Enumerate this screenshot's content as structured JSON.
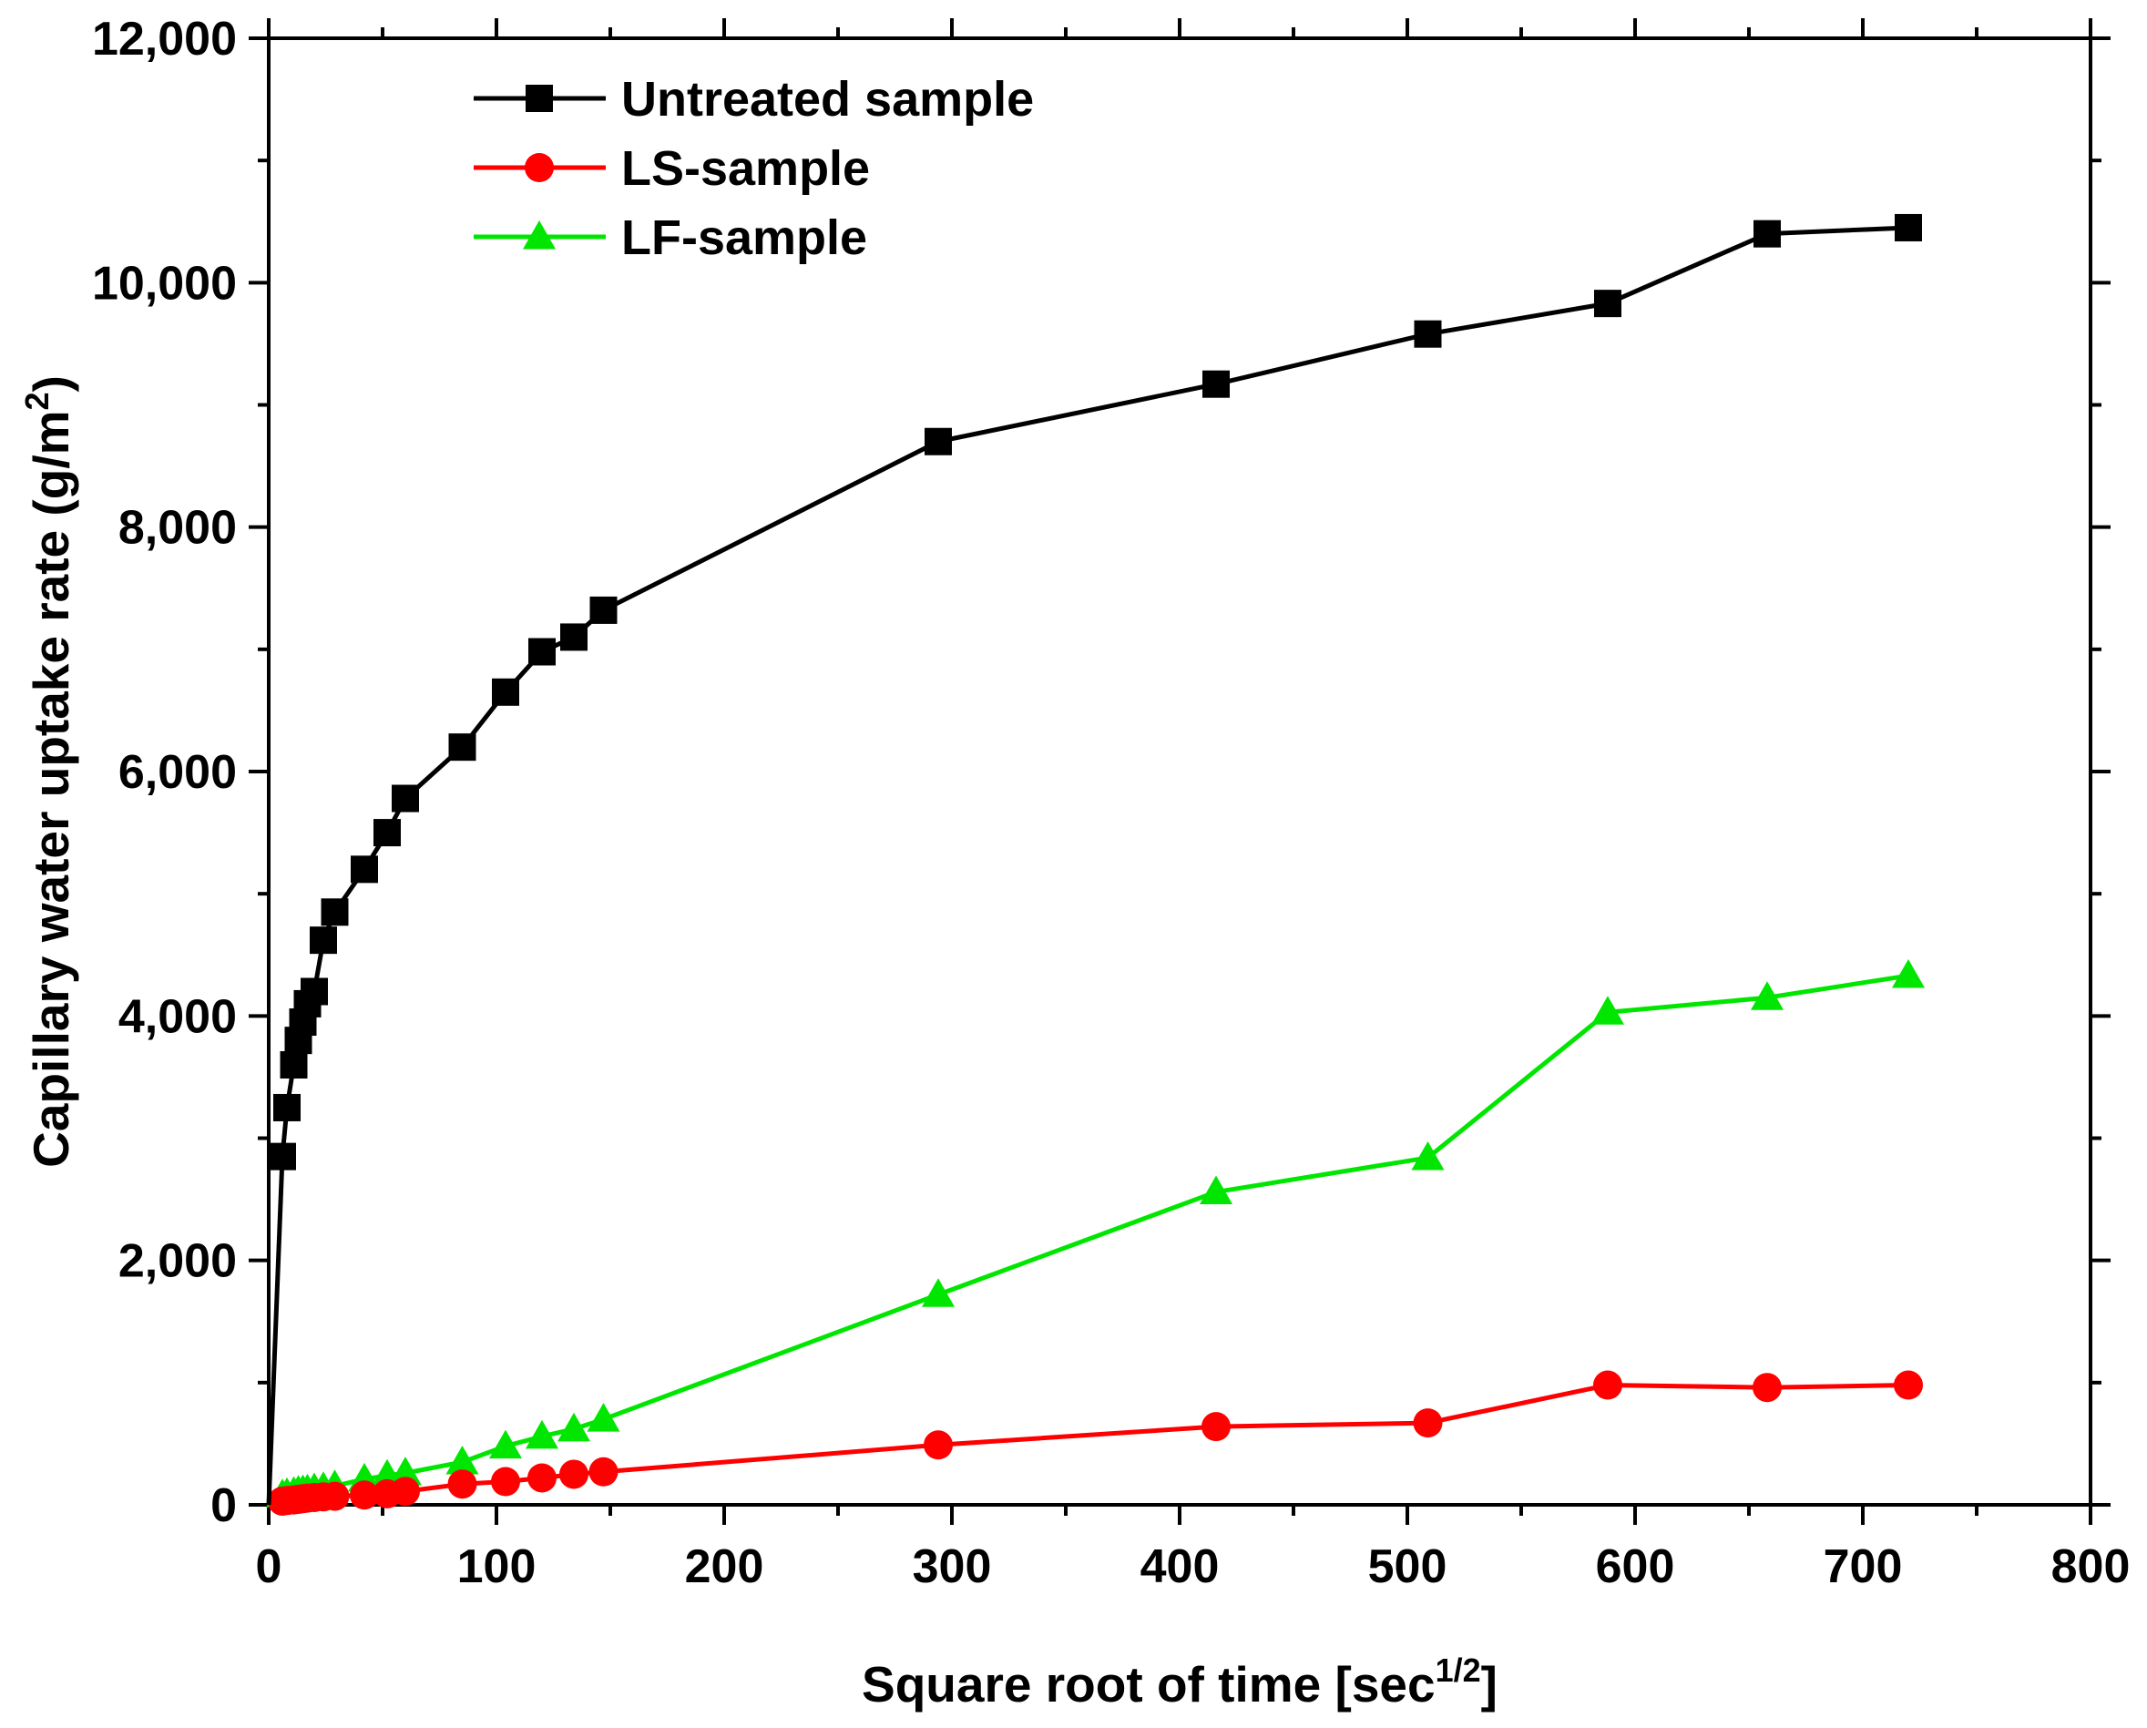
{
  "chart_data": {
    "type": "line",
    "title": "",
    "xlabel": {
      "text": "Square root of time [sec",
      "sup": "1/2",
      "suffix": "]"
    },
    "ylabel": {
      "text": "Capillary water uptake rate (g/m",
      "sup": "2",
      "suffix": ")"
    },
    "xlim": [
      0,
      800
    ],
    "ylim": [
      0,
      12000
    ],
    "x_ticks": [
      "0",
      "100",
      "200",
      "300",
      "400",
      "500",
      "600",
      "700",
      "800"
    ],
    "y_ticks": [
      "0",
      "2,000",
      "4,000",
      "6,000",
      "8,000",
      "10,000",
      "12,000"
    ],
    "grid": false,
    "legend_position": "top-left",
    "series": [
      {
        "name": "Untreated sample",
        "color": "#000000",
        "marker": "square",
        "x": [
          0,
          6,
          8,
          11,
          13,
          15,
          17,
          20,
          24,
          29,
          42,
          52,
          60,
          85,
          104,
          120,
          134,
          147,
          294,
          416,
          509,
          588,
          658,
          720
        ],
        "y": [
          0,
          2850,
          3250,
          3600,
          3800,
          3950,
          4100,
          4200,
          4620,
          4850,
          5200,
          5500,
          5780,
          6200,
          6650,
          6980,
          7100,
          7320,
          8700,
          9170,
          9580,
          9830,
          10400,
          10450
        ]
      },
      {
        "name": "LS-sample",
        "color": "#ff0000",
        "marker": "circle",
        "x": [
          0,
          6,
          8,
          11,
          13,
          15,
          17,
          20,
          24,
          29,
          42,
          52,
          60,
          85,
          104,
          120,
          134,
          147,
          294,
          416,
          509,
          588,
          658,
          720
        ],
        "y": [
          0,
          30,
          35,
          40,
          45,
          50,
          55,
          60,
          65,
          70,
          80,
          90,
          110,
          170,
          190,
          220,
          250,
          270,
          490,
          640,
          670,
          980,
          960,
          980
        ]
      },
      {
        "name": "LF-sample",
        "color": "#00e600",
        "marker": "triangle",
        "x": [
          0,
          6,
          8,
          11,
          13,
          15,
          17,
          20,
          24,
          29,
          42,
          52,
          60,
          85,
          104,
          120,
          134,
          147,
          294,
          416,
          509,
          588,
          658,
          720
        ],
        "y": [
          0,
          80,
          90,
          100,
          110,
          115,
          120,
          130,
          140,
          155,
          210,
          240,
          260,
          350,
          480,
          560,
          620,
          700,
          1720,
          2560,
          2840,
          4030,
          4150,
          4330
        ]
      }
    ]
  }
}
